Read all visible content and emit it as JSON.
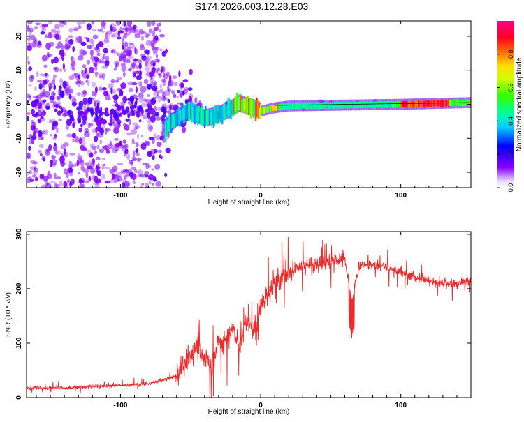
{
  "title": "S174.2026.003.12.28.E03",
  "colors": {
    "snr_line": "#ee2a2a",
    "scatter_purple": "#6a00ff",
    "axis": "#000000"
  },
  "chart_data": [
    {
      "type": "scatter",
      "name": "spectrogram",
      "title": "S174.2026.003.12.28.E03",
      "xlabel": "Height of straight line (km)",
      "ylabel": "Frequency (Hz)",
      "xlim": [
        -167,
        150
      ],
      "ylim": [
        -24.5,
        24.5
      ],
      "x_ticks": [
        -100,
        0,
        100
      ],
      "x_tick_labels": [
        "-100",
        "0",
        "100"
      ],
      "y_ticks": [
        -20,
        -10,
        0,
        10,
        20
      ],
      "y_tick_labels": [
        "-20",
        "-10",
        "0",
        "10",
        "20"
      ],
      "colorbar": {
        "label": "Normalized spectral amplitude",
        "range": [
          0,
          1
        ],
        "ticks": [
          0.0,
          0.2,
          0.4,
          0.6,
          0.8
        ],
        "tick_labels": [
          "0.0",
          "0.2",
          "0.4",
          "0.6",
          "0.8"
        ],
        "colormap": "rainbow (violet to red)"
      },
      "ridge": {
        "description": "Narrow high-amplitude ridge near 0 Hz",
        "x": [
          -68,
          -60,
          -50,
          -40,
          -30,
          -20,
          -15,
          -10,
          -5,
          0,
          10,
          20,
          50,
          100,
          120,
          150
        ],
        "y": [
          -7,
          -4,
          -2,
          -4,
          -3,
          -1,
          0.5,
          -0.5,
          -1,
          -2,
          -1,
          -0.5,
          -0.3,
          0,
          0.2,
          0.5
        ],
        "peak_region_x": [
          100,
          135
        ],
        "peak_amplitude": 1.0
      }
    },
    {
      "type": "line",
      "name": "snr",
      "xlabel": "Height of straight line (km)",
      "ylabel": "SNR (10 * v/v)",
      "xlim": [
        -167,
        150
      ],
      "ylim": [
        0,
        305
      ],
      "x_ticks": [
        -100,
        0,
        100
      ],
      "x_tick_labels": [
        "-100",
        "0",
        "100"
      ],
      "y_ticks": [
        0,
        100,
        200,
        300
      ],
      "y_tick_labels": [
        "0",
        "100",
        "200",
        "300"
      ],
      "series": [
        {
          "name": "SNR",
          "x": [
            -167,
            -140,
            -120,
            -100,
            -80,
            -60,
            -55,
            -50,
            -45,
            -40,
            -35,
            -30,
            -25,
            -20,
            -15,
            -10,
            -5,
            0,
            5,
            10,
            15,
            20,
            30,
            40,
            50,
            60,
            65,
            70,
            80,
            90,
            100,
            110,
            120,
            130,
            140,
            150
          ],
          "y": [
            18,
            18,
            20,
            22,
            25,
            40,
            60,
            80,
            95,
            70,
            55,
            110,
            100,
            130,
            90,
            150,
            120,
            170,
            190,
            210,
            215,
            230,
            240,
            245,
            250,
            255,
            180,
            240,
            245,
            240,
            230,
            220,
            215,
            210,
            210,
            215
          ]
        }
      ]
    }
  ]
}
